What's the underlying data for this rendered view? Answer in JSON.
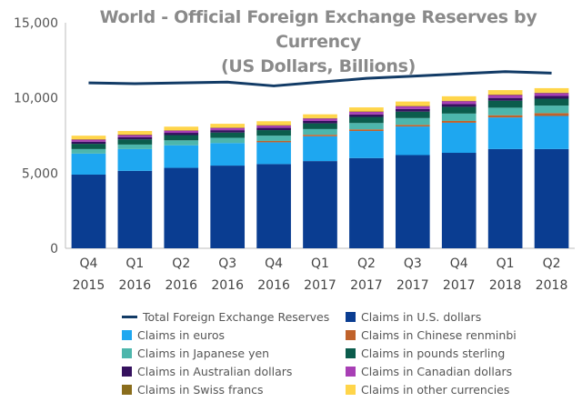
{
  "chart_data": {
    "type": "bar",
    "stacked": true,
    "title": "World - Official Foreign Exchange Reserves by Currency",
    "subtitle": "(US Dollars, Billions)",
    "xlabel": "",
    "ylabel": "",
    "ylim": [
      0,
      15000
    ],
    "yticks": [
      "0",
      "5,000",
      "10,000",
      "15,000"
    ],
    "ytick_values": [
      0,
      5000,
      10000,
      15000
    ],
    "grid": false,
    "legend_position": "bottom",
    "categories": [
      {
        "quarter": "Q4",
        "year": "2015"
      },
      {
        "quarter": "Q1",
        "year": "2016"
      },
      {
        "quarter": "Q2",
        "year": "2016"
      },
      {
        "quarter": "Q3",
        "year": "2016"
      },
      {
        "quarter": "Q4",
        "year": "2016"
      },
      {
        "quarter": "Q1",
        "year": "2017"
      },
      {
        "quarter": "Q2",
        "year": "2017"
      },
      {
        "quarter": "Q3",
        "year": "2017"
      },
      {
        "quarter": "Q4",
        "year": "2017"
      },
      {
        "quarter": "Q1",
        "year": "2018"
      },
      {
        "quarter": "Q2",
        "year": "2018"
      }
    ],
    "series": [
      {
        "name": "Claims in U.S. dollars",
        "color": "#0a3d91",
        "values": [
          4900,
          5150,
          5350,
          5500,
          5600,
          5800,
          6000,
          6200,
          6350,
          6600,
          6600
        ]
      },
      {
        "name": "Claims in euros",
        "color": "#1ea7f0",
        "values": [
          1400,
          1450,
          1500,
          1500,
          1450,
          1650,
          1800,
          1900,
          2000,
          2100,
          2200
        ]
      },
      {
        "name": "Claims in Chinese renminbi",
        "color": "#c0622b",
        "values": [
          0,
          0,
          0,
          0,
          90,
          100,
          110,
          110,
          120,
          150,
          190
        ]
      },
      {
        "name": "Claims in Japanese yen",
        "color": "#4db6ac",
        "values": [
          300,
          300,
          330,
          350,
          350,
          380,
          420,
          450,
          490,
          500,
          500
        ]
      },
      {
        "name": "Claims in pounds sterling",
        "color": "#0b5c4c",
        "values": [
          350,
          350,
          350,
          350,
          370,
          380,
          410,
          430,
          450,
          470,
          460
        ]
      },
      {
        "name": "Claims in Australian dollars",
        "color": "#35115e",
        "values": [
          140,
          145,
          150,
          155,
          150,
          160,
          160,
          170,
          180,
          180,
          180
        ]
      },
      {
        "name": "Claims in Canadian dollars",
        "color": "#a83fb5",
        "values": [
          140,
          145,
          150,
          155,
          160,
          170,
          180,
          190,
          200,
          200,
          200
        ]
      },
      {
        "name": "Claims in Swiss francs",
        "color": "#8a6d1c",
        "values": [
          20,
          20,
          20,
          20,
          20,
          20,
          20,
          20,
          20,
          20,
          20
        ]
      },
      {
        "name": "Claims in other currencies",
        "color": "#ffd54a",
        "values": [
          240,
          240,
          240,
          250,
          260,
          250,
          270,
          290,
          300,
          300,
          300
        ]
      }
    ],
    "line_series": {
      "name": "Total Foreign Exchange Reserves",
      "color": "#123b66",
      "values": [
        11000,
        10950,
        11000,
        11050,
        10800,
        11050,
        11300,
        11450,
        11600,
        11750,
        11650
      ]
    },
    "legend_order": [
      "Total Foreign Exchange Reserves",
      "Claims in U.S. dollars",
      "Claims in euros",
      "Claims in Chinese renminbi",
      "Claims in Japanese yen",
      "Claims in pounds sterling",
      "Claims in Australian dollars",
      "Claims in Canadian dollars",
      "Claims in Swiss francs",
      "Claims in other currencies"
    ]
  }
}
